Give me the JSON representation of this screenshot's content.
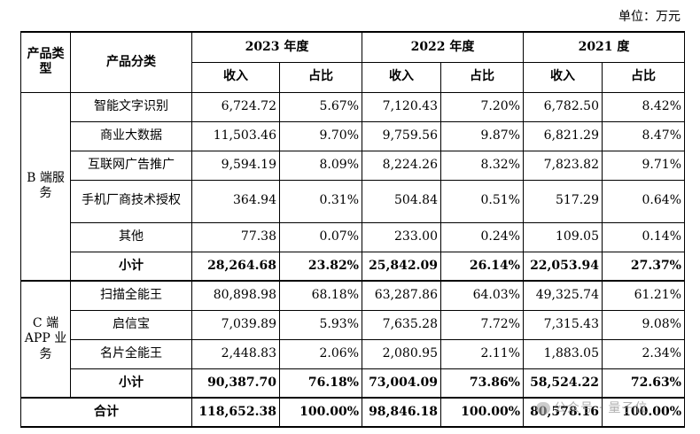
{
  "unit_note": "单位：万元",
  "header": {
    "product_type": "产品类型",
    "category": "产品分类",
    "years": [
      "2023 年度",
      "2022 年度",
      "2021 度"
    ],
    "revenue": "收入",
    "share": "占比"
  },
  "groups": [
    {
      "name": "B 端服务",
      "rows": [
        {
          "name": "智能文字识别",
          "v": [
            "6,724.72",
            "5.67%",
            "7,120.43",
            "7.20%",
            "6,782.50",
            "8.42%"
          ]
        },
        {
          "name": "商业大数据",
          "v": [
            "11,503.46",
            "9.70%",
            "9,759.56",
            "9.87%",
            "6,821.29",
            "8.47%"
          ]
        },
        {
          "name": "互联网广告推广",
          "v": [
            "9,594.19",
            "8.09%",
            "8,224.26",
            "8.32%",
            "7,823.82",
            "9.71%"
          ]
        },
        {
          "name": "手机厂商技术授权",
          "v": [
            "364.94",
            "0.31%",
            "504.84",
            "0.51%",
            "517.29",
            "0.64%"
          ]
        },
        {
          "name": "其他",
          "v": [
            "77.38",
            "0.07%",
            "233.00",
            "0.24%",
            "109.05",
            "0.14%"
          ]
        }
      ],
      "subtotal": {
        "name": "小计",
        "v": [
          "28,264.68",
          "23.82%",
          "25,842.09",
          "26.14%",
          "22,053.94",
          "27.37%"
        ]
      }
    },
    {
      "name": "C 端 APP 业务",
      "rows": [
        {
          "name": "扫描全能王",
          "v": [
            "80,898.98",
            "68.18%",
            "63,287.86",
            "64.03%",
            "49,325.74",
            "61.21%"
          ]
        },
        {
          "name": "启信宝",
          "v": [
            "7,039.89",
            "5.93%",
            "7,635.28",
            "7.72%",
            "7,315.43",
            "9.08%"
          ]
        },
        {
          "name": "名片全能王",
          "v": [
            "2,448.83",
            "2.06%",
            "2,080.95",
            "2.11%",
            "1,883.05",
            "2.34%"
          ]
        }
      ],
      "subtotal": {
        "name": "小计",
        "v": [
          "90,387.70",
          "76.18%",
          "73,004.09",
          "73.86%",
          "58,524.22",
          "72.63%"
        ]
      }
    }
  ],
  "total": {
    "name": "合计",
    "v": [
      "118,652.38",
      "100.00%",
      "98,846.18",
      "100.00%",
      "80,578.16",
      "100.00%"
    ]
  },
  "watermark": "公众号 · 量子位"
}
